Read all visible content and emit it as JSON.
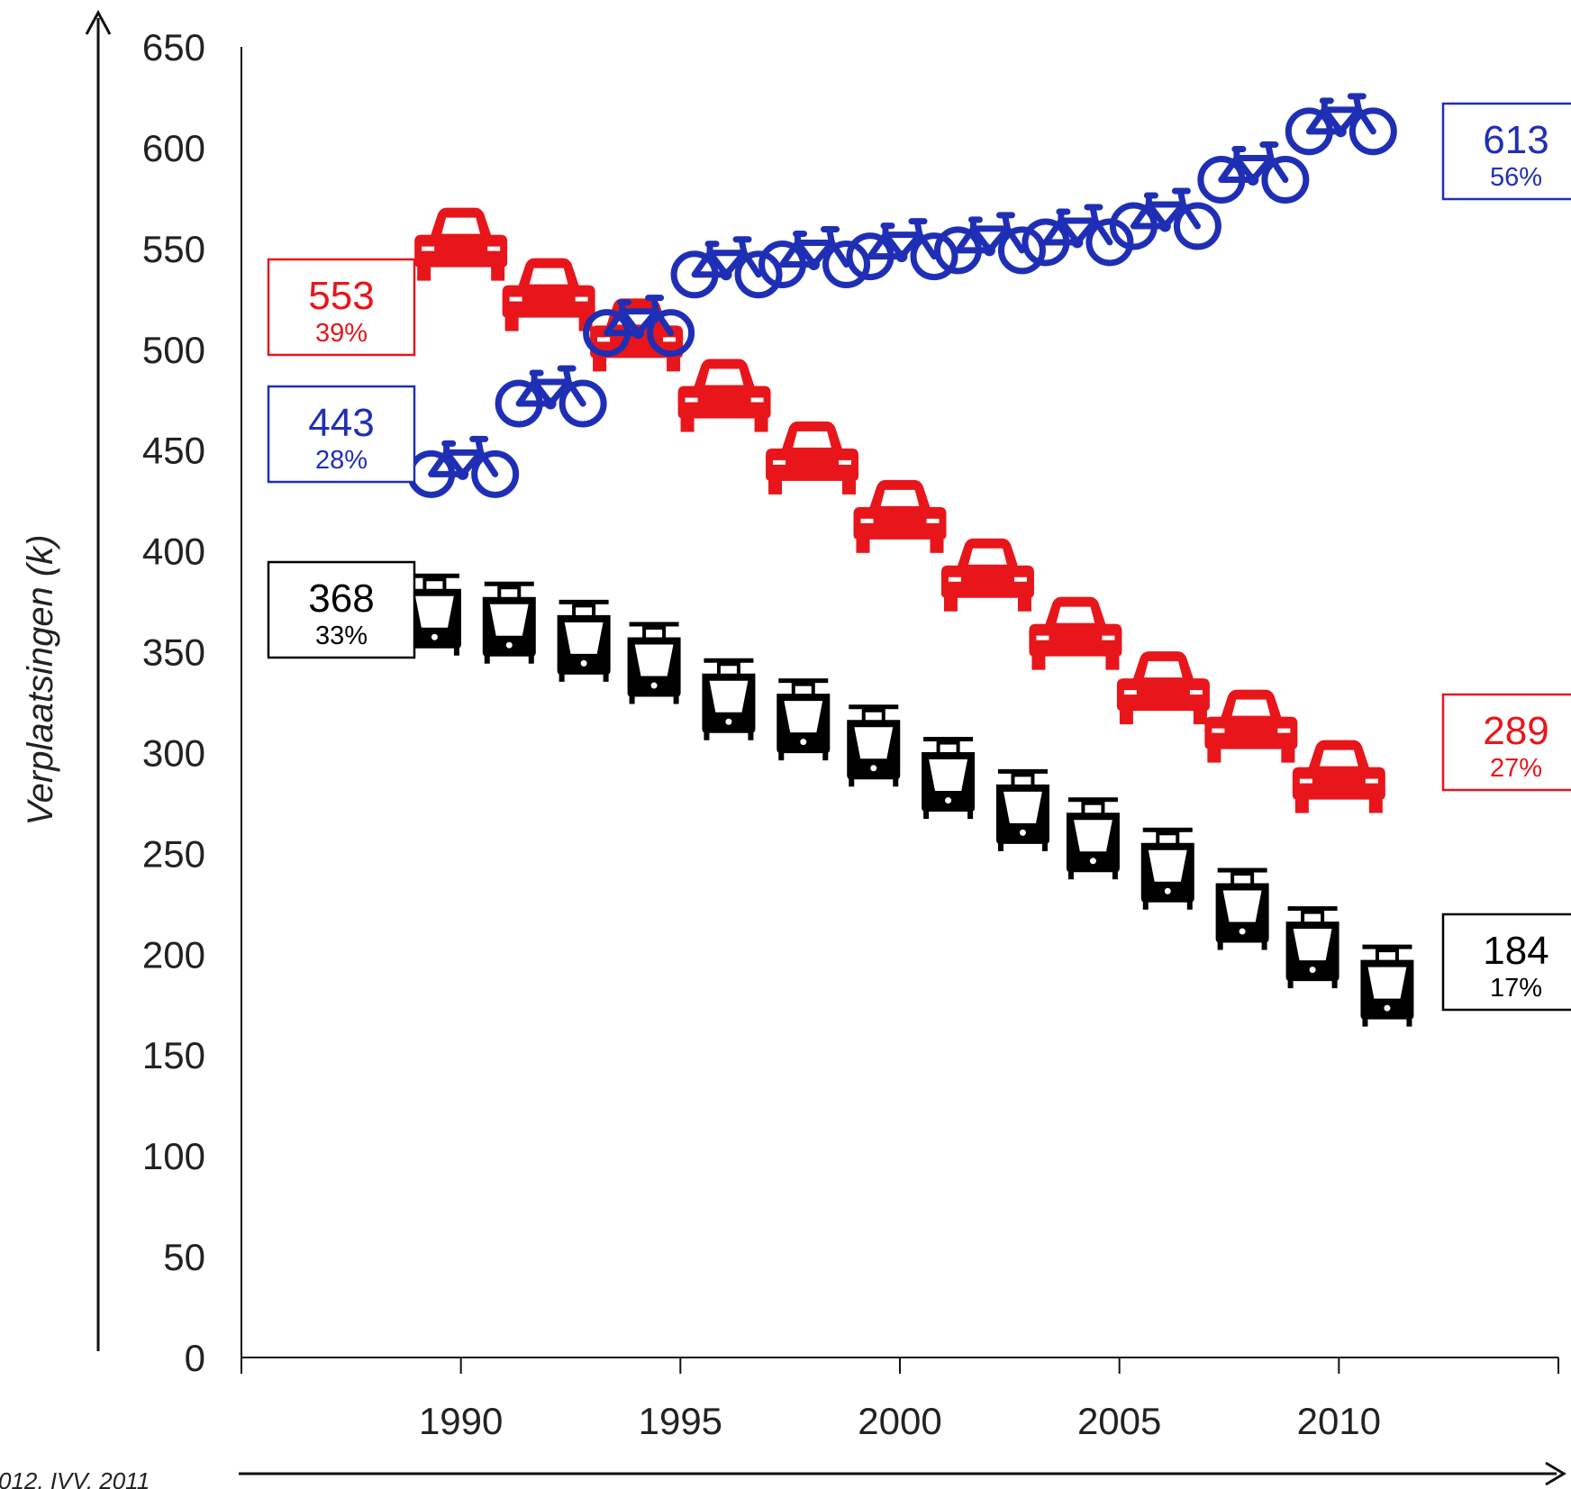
{
  "chart_data": {
    "type": "line",
    "ylabel": "Verplaatsingen (k)",
    "xlabel": "",
    "ylim": [
      0,
      650
    ],
    "yticks": [
      0,
      50,
      100,
      150,
      200,
      250,
      300,
      350,
      400,
      450,
      500,
      550,
      600,
      650
    ],
    "xlim": [
      1985,
      2015
    ],
    "xticks": [
      1990,
      1995,
      2000,
      2005,
      2010
    ],
    "source_note": "012, IVV, 2011",
    "colors": {
      "bicycle": "#1f2fb5",
      "car": "#e8161b",
      "tram": "#000000"
    },
    "series": [
      {
        "icon": "bicycle-icon",
        "color": "#1f2fb5",
        "x": [
          1990,
          1992,
          1994,
          1996,
          1998,
          2000,
          2002,
          2004,
          2006,
          2008,
          2010
        ],
        "values": [
          443,
          478,
          513,
          542,
          547,
          551,
          554,
          558,
          566,
          589,
          613
        ],
        "start_box": {
          "value": "443",
          "pct": "28%"
        },
        "end_box": {
          "value": "613",
          "pct": "56%"
        }
      },
      {
        "icon": "car-icon",
        "color": "#e8161b",
        "x": [
          1990,
          1992,
          1994,
          1996,
          1998,
          2000,
          2002,
          2004,
          2006,
          2008,
          2010
        ],
        "values": [
          553,
          528,
          508,
          478,
          447,
          418,
          389,
          360,
          333,
          314,
          289
        ],
        "start_box": {
          "value": "553",
          "pct": "39%"
        },
        "end_box": {
          "value": "289",
          "pct": "27%"
        }
      },
      {
        "icon": "tram-icon",
        "color": "#000000",
        "x": [
          1989.4,
          1991.1,
          1992.8,
          1994.4,
          1996.1,
          1997.8,
          1999.4,
          2001.1,
          2002.8,
          2004.4,
          2006.1,
          2007.8,
          2009.4,
          2011.1
        ],
        "values": [
          368,
          364,
          355,
          344,
          326,
          316,
          303,
          287,
          271,
          257,
          242,
          222,
          203,
          184
        ],
        "start_box": {
          "value": "368",
          "pct": "33%"
        },
        "end_box": {
          "value": "184",
          "pct": "17%"
        }
      }
    ]
  }
}
